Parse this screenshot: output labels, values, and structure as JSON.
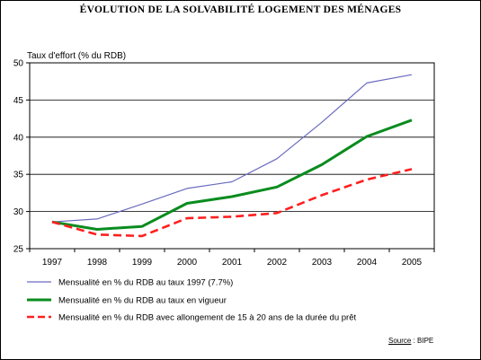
{
  "chart_data": {
    "type": "line",
    "title": "ÉVOLUTION DE LA SOLVABILITÉ LOGEMENT DES MÉNAGES",
    "ylabel": "Taux d'effort (% du RDB)",
    "xlabel": "",
    "x": [
      "1997",
      "1998",
      "1999",
      "2000",
      "2001",
      "2002",
      "2003",
      "2004",
      "2005"
    ],
    "ylim": [
      25,
      50
    ],
    "yticks": [
      "25",
      "30",
      "35",
      "40",
      "45",
      "50"
    ],
    "grid": true,
    "legend_position": "bottom",
    "series": [
      {
        "name": "Mensualité en % du RDB au taux 1997 (7.7%)",
        "values": [
          28.6,
          29.0,
          31.0,
          33.1,
          34.0,
          37.1,
          42.0,
          47.3,
          48.4
        ],
        "color": "#6A6ABF",
        "style": "thin"
      },
      {
        "name": "Mensualité en % du RDB au taux en vigueur",
        "values": [
          28.6,
          27.6,
          28.0,
          31.1,
          32.0,
          33.3,
          36.3,
          40.1,
          42.3
        ],
        "color": "#0A8C1E",
        "style": "thick"
      },
      {
        "name": "Mensualité en % du RDB avec allongement de 15 à 20 ans de la durée du prêt",
        "values": [
          28.6,
          26.9,
          26.7,
          29.1,
          29.3,
          29.8,
          32.2,
          34.3,
          35.7
        ],
        "color": "#FF1F1F",
        "style": "dashed"
      }
    ],
    "source_label": "Source",
    "source_value": " : BIPE"
  }
}
